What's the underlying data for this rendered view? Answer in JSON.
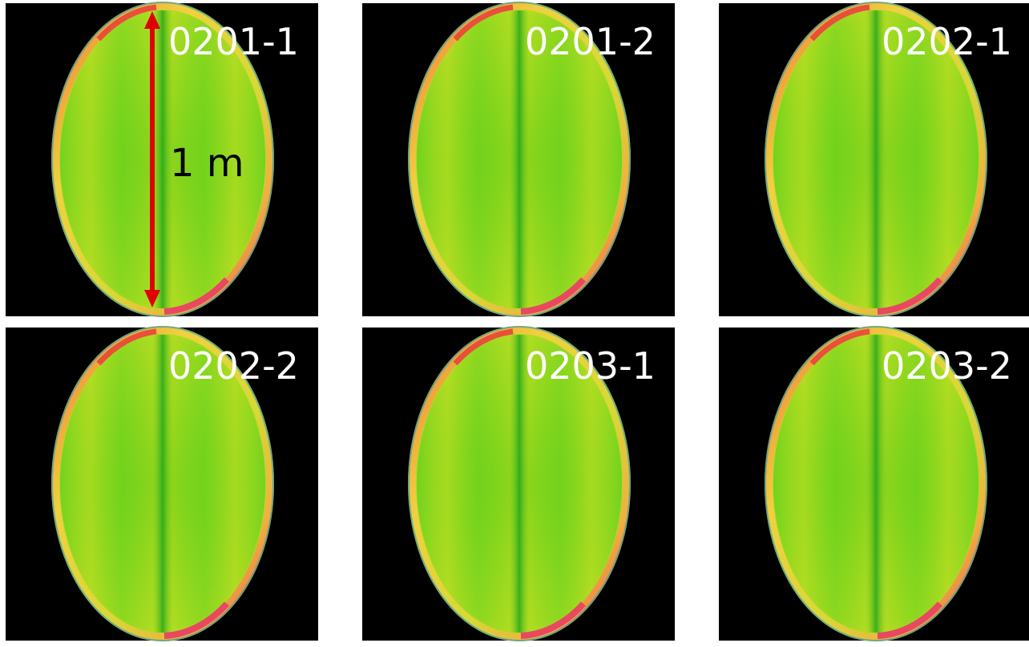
{
  "panels": [
    {
      "label": "0201-1"
    },
    {
      "label": "0201-2"
    },
    {
      "label": "0202-1"
    },
    {
      "label": "0202-2"
    },
    {
      "label": "0203-1"
    },
    {
      "label": "0203-2"
    }
  ],
  "scale_label": "1 m"
}
